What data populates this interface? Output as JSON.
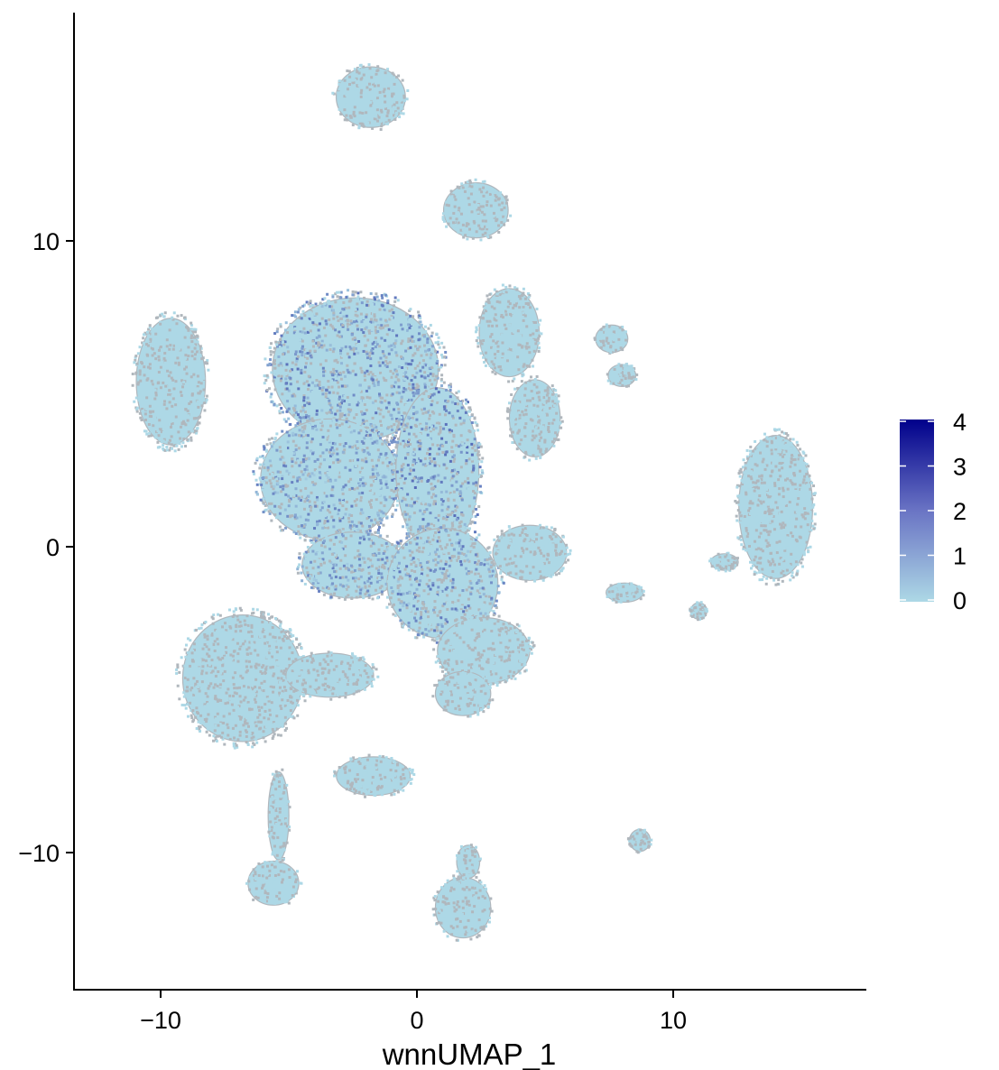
{
  "chart_data": {
    "type": "scatter",
    "title": "",
    "xlabel": "wnnUMAP_1",
    "ylabel": "",
    "xlim": [
      -13.5,
      17.5
    ],
    "ylim": [
      -14.5,
      17.5
    ],
    "x_ticks": [
      {
        "value": -10,
        "label": "−10"
      },
      {
        "value": 0,
        "label": "0"
      },
      {
        "value": 10,
        "label": "10"
      }
    ],
    "y_ticks": [
      {
        "value": 10,
        "label": "10"
      },
      {
        "value": 0,
        "label": "0"
      },
      {
        "value": -10,
        "label": "−10"
      }
    ],
    "grid": false,
    "legend_placement": "right",
    "color_scale": {
      "low_color": "#add8e6",
      "high_color": "#00008b",
      "min": 0,
      "max": 4,
      "ticks": [
        {
          "value": 4,
          "label": "4"
        },
        {
          "value": 3,
          "label": "3"
        },
        {
          "value": 2,
          "label": "2"
        },
        {
          "value": 1,
          "label": "1"
        },
        {
          "value": 0,
          "label": "0"
        }
      ]
    },
    "point_colors": {
      "fill": "#add8e6",
      "outline": "#b0b7bd"
    },
    "clusters": [
      {
        "cx": -1.8,
        "cy": 14.7,
        "rx": 1.5,
        "ry": 1.1,
        "value": 0
      },
      {
        "cx": 2.3,
        "cy": 11.0,
        "rx": 1.4,
        "ry": 1.0,
        "value": 0
      },
      {
        "cx": -9.6,
        "cy": 5.4,
        "rx": 1.5,
        "ry": 2.3,
        "value": 0
      },
      {
        "cx": -2.4,
        "cy": 5.8,
        "rx": 3.6,
        "ry": 2.6,
        "value": 0.4
      },
      {
        "cx": -3.4,
        "cy": 2.2,
        "rx": 3.0,
        "ry": 2.2,
        "value": 0.2
      },
      {
        "cx": 0.8,
        "cy": 2.5,
        "rx": 1.8,
        "ry": 3.0,
        "value": 0.5
      },
      {
        "cx": 3.6,
        "cy": 7.0,
        "rx": 1.3,
        "ry": 1.6,
        "value": 0
      },
      {
        "cx": 4.6,
        "cy": 4.2,
        "rx": 1.1,
        "ry": 1.4,
        "value": 0
      },
      {
        "cx": 7.6,
        "cy": 6.8,
        "rx": 0.7,
        "ry": 0.5,
        "value": 0
      },
      {
        "cx": 8.0,
        "cy": 5.6,
        "rx": 0.6,
        "ry": 0.4,
        "value": 0
      },
      {
        "cx": 14.0,
        "cy": 1.3,
        "rx": 1.6,
        "ry": 2.6,
        "value": 0
      },
      {
        "cx": -2.5,
        "cy": -0.6,
        "rx": 2.2,
        "ry": 1.2,
        "value": 0.2
      },
      {
        "cx": 1.0,
        "cy": -1.2,
        "rx": 2.4,
        "ry": 2.0,
        "value": 0.3
      },
      {
        "cx": 4.4,
        "cy": -0.2,
        "rx": 1.6,
        "ry": 1.0,
        "value": 0
      },
      {
        "cx": 2.6,
        "cy": -3.4,
        "rx": 2.0,
        "ry": 1.2,
        "value": 0
      },
      {
        "cx": 1.8,
        "cy": -4.8,
        "rx": 1.2,
        "ry": 0.8,
        "value": 0
      },
      {
        "cx": -6.8,
        "cy": -4.3,
        "rx": 2.6,
        "ry": 2.3,
        "value": 0
      },
      {
        "cx": -3.4,
        "cy": -4.2,
        "rx": 1.9,
        "ry": 0.8,
        "value": 0
      },
      {
        "cx": -5.4,
        "cy": -8.8,
        "rx": 0.45,
        "ry": 1.6,
        "value": 0
      },
      {
        "cx": -5.6,
        "cy": -11.0,
        "rx": 1.1,
        "ry": 0.8,
        "value": 0
      },
      {
        "cx": -1.7,
        "cy": -7.5,
        "rx": 1.6,
        "ry": 0.7,
        "value": 0
      },
      {
        "cx": 1.8,
        "cy": -11.8,
        "rx": 1.2,
        "ry": 1.1,
        "value": 0
      },
      {
        "cx": 2.0,
        "cy": -10.3,
        "rx": 0.5,
        "ry": 0.6,
        "value": 0
      },
      {
        "cx": 8.7,
        "cy": -9.6,
        "rx": 0.45,
        "ry": 0.4,
        "value": 0
      },
      {
        "cx": 8.1,
        "cy": -1.5,
        "rx": 0.8,
        "ry": 0.35,
        "value": 0
      },
      {
        "cx": 11.0,
        "cy": -2.1,
        "rx": 0.35,
        "ry": 0.3,
        "value": 0
      },
      {
        "cx": 12.0,
        "cy": -0.5,
        "rx": 0.6,
        "ry": 0.3,
        "value": 0
      }
    ]
  }
}
